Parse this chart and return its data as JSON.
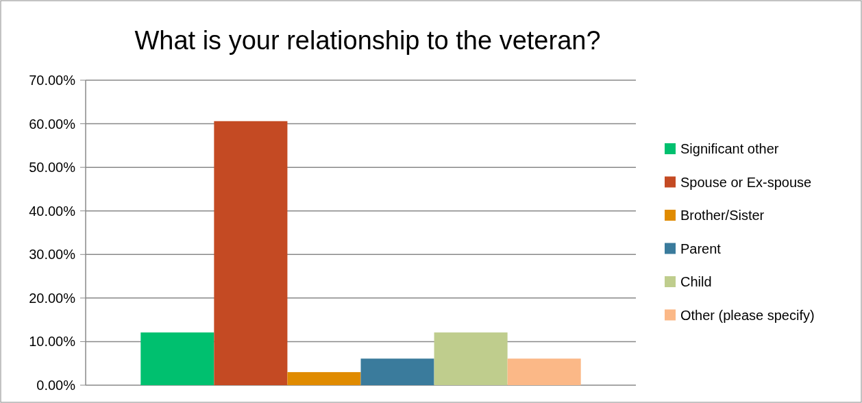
{
  "chart_data": {
    "type": "bar",
    "title": "What is your relationship to the veteran?",
    "categories": [
      null
    ],
    "series": [
      {
        "name": "Significant other",
        "color": "#00c06f",
        "values": [
          12.1
        ]
      },
      {
        "name": "Spouse or Ex-spouse",
        "color": "#c44a23",
        "values": [
          60.6
        ]
      },
      {
        "name": "Brother/Sister",
        "color": "#e08b00",
        "values": [
          3.0
        ]
      },
      {
        "name": "Parent",
        "color": "#3a7b9c",
        "values": [
          6.1
        ]
      },
      {
        "name": "Child",
        "color": "#bfcd8d",
        "values": [
          12.1
        ]
      },
      {
        "name": "Other (please specify)",
        "color": "#fbb887",
        "values": [
          6.1
        ]
      }
    ],
    "ylim": [
      0,
      70
    ],
    "yticks": [
      {
        "value": 0,
        "label": "0.00%"
      },
      {
        "value": 10,
        "label": "10.00%"
      },
      {
        "value": 20,
        "label": "20.00%"
      },
      {
        "value": 30,
        "label": "30.00%"
      },
      {
        "value": 40,
        "label": "40.00%"
      },
      {
        "value": 50,
        "label": "50.00%"
      },
      {
        "value": 60,
        "label": "60.00%"
      },
      {
        "value": 70,
        "label": "70.00%"
      }
    ],
    "grid": "y",
    "legend": "right"
  }
}
